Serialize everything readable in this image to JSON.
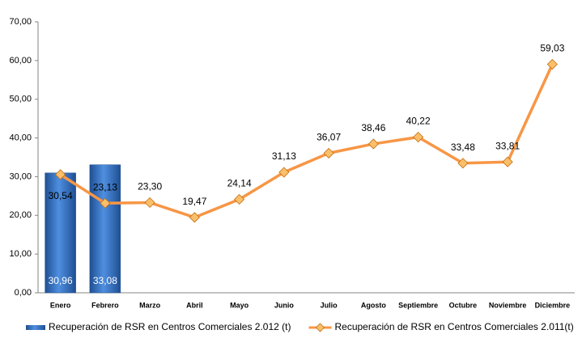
{
  "chart_data": {
    "type": "combo",
    "categories": [
      "Enero",
      "Febrero",
      "Marzo",
      "Abril",
      "Mayo",
      "Junio",
      "Julio",
      "Agosto",
      "Septiembre",
      "Octubre",
      "Noviembre",
      "Diciembre"
    ],
    "series": [
      {
        "name": "Recuperación de RSR en Centros Comerciales 2.012 (t)",
        "type": "bar",
        "color": "#2e6fc4",
        "values": [
          30.96,
          33.08,
          null,
          null,
          null,
          null,
          null,
          null,
          null,
          null,
          null,
          null
        ],
        "value_labels": [
          "30,96",
          "33,08",
          null,
          null,
          null,
          null,
          null,
          null,
          null,
          null,
          null,
          null
        ]
      },
      {
        "name": "Recuperación de RSR en Centros Comerciales 2.011(t)",
        "type": "line",
        "color": "#f79646",
        "values": [
          30.54,
          23.13,
          23.3,
          19.47,
          24.14,
          31.13,
          36.07,
          38.46,
          40.22,
          33.48,
          33.81,
          59.03
        ],
        "value_labels": [
          "30,54",
          "23,13",
          "23,30",
          "19,47",
          "24,14",
          "31,13",
          "36,07",
          "38,46",
          "40,22",
          "33,48",
          "33,81",
          "59,03"
        ]
      }
    ],
    "ylim": [
      0,
      70
    ],
    "yticks": [
      {
        "value": 0,
        "label": "0,00"
      },
      {
        "value": 10,
        "label": "10,00"
      },
      {
        "value": 20,
        "label": "20,00"
      },
      {
        "value": 30,
        "label": "30,00"
      },
      {
        "value": 40,
        "label": "40,00"
      },
      {
        "value": 50,
        "label": "50,00"
      },
      {
        "value": 60,
        "label": "60,00"
      },
      {
        "value": 70,
        "label": "70,00"
      }
    ],
    "grid": false,
    "legend": "bottom"
  }
}
